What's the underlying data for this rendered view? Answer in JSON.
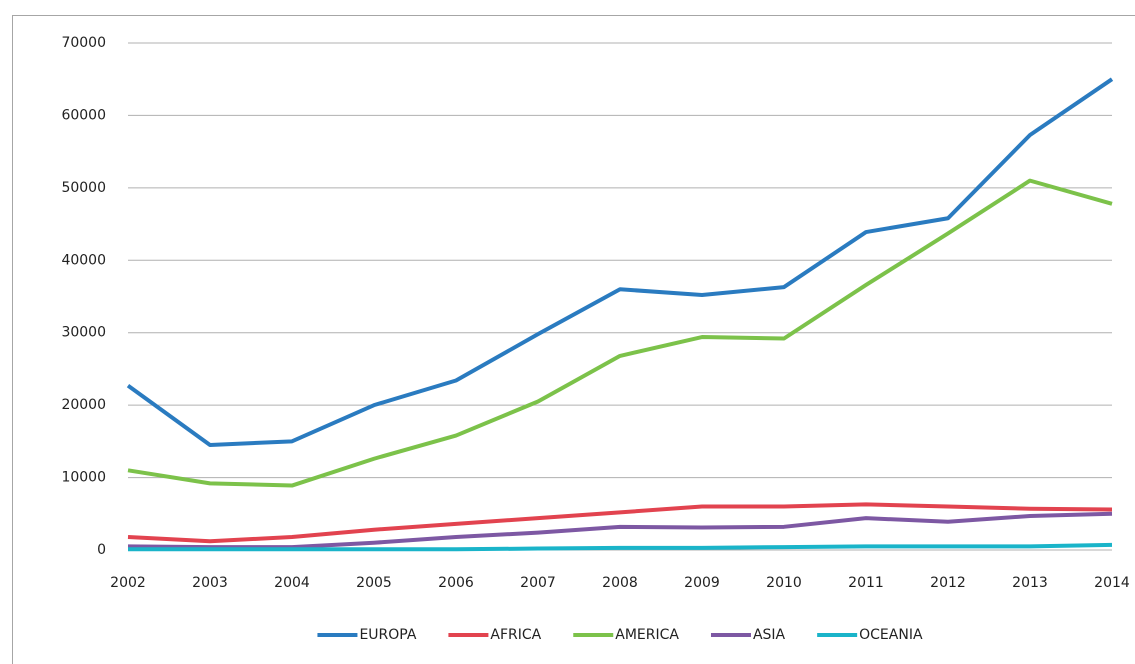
{
  "chart_data": {
    "type": "line",
    "categories": [
      "2002",
      "2003",
      "2004",
      "2005",
      "2006",
      "2007",
      "2008",
      "2009",
      "2010",
      "2011",
      "2012",
      "2013",
      "2014"
    ],
    "series": [
      {
        "name": "EUROPA",
        "color": "#2a7bc0",
        "values": [
          22700,
          14500,
          15000,
          20000,
          23400,
          29800,
          36000,
          35200,
          36300,
          43900,
          45800,
          57300,
          65000
        ]
      },
      {
        "name": "AFRICA",
        "color": "#e2434f",
        "values": [
          1800,
          1200,
          1800,
          2800,
          3600,
          4400,
          5200,
          6000,
          6000,
          6300,
          6000,
          5700,
          5600
        ]
      },
      {
        "name": "AMERICA",
        "color": "#7cc24a",
        "values": [
          11000,
          9200,
          8900,
          12600,
          15800,
          20500,
          26800,
          29400,
          29200,
          36600,
          43700,
          51000,
          47800
        ]
      },
      {
        "name": "ASIA",
        "color": "#7d58a3",
        "values": [
          500,
          400,
          400,
          1000,
          1800,
          2400,
          3200,
          3100,
          3200,
          4400,
          3900,
          4700,
          5000
        ]
      },
      {
        "name": "OCEANIA",
        "color": "#1ab4c9",
        "values": [
          100,
          100,
          100,
          100,
          100,
          200,
          300,
          300,
          400,
          500,
          500,
          500,
          700
        ]
      }
    ],
    "ylim": [
      0,
      70000
    ],
    "yticks": [
      0,
      10000,
      20000,
      30000,
      40000,
      50000,
      60000,
      70000
    ],
    "grid": true,
    "legend": "bottom"
  }
}
